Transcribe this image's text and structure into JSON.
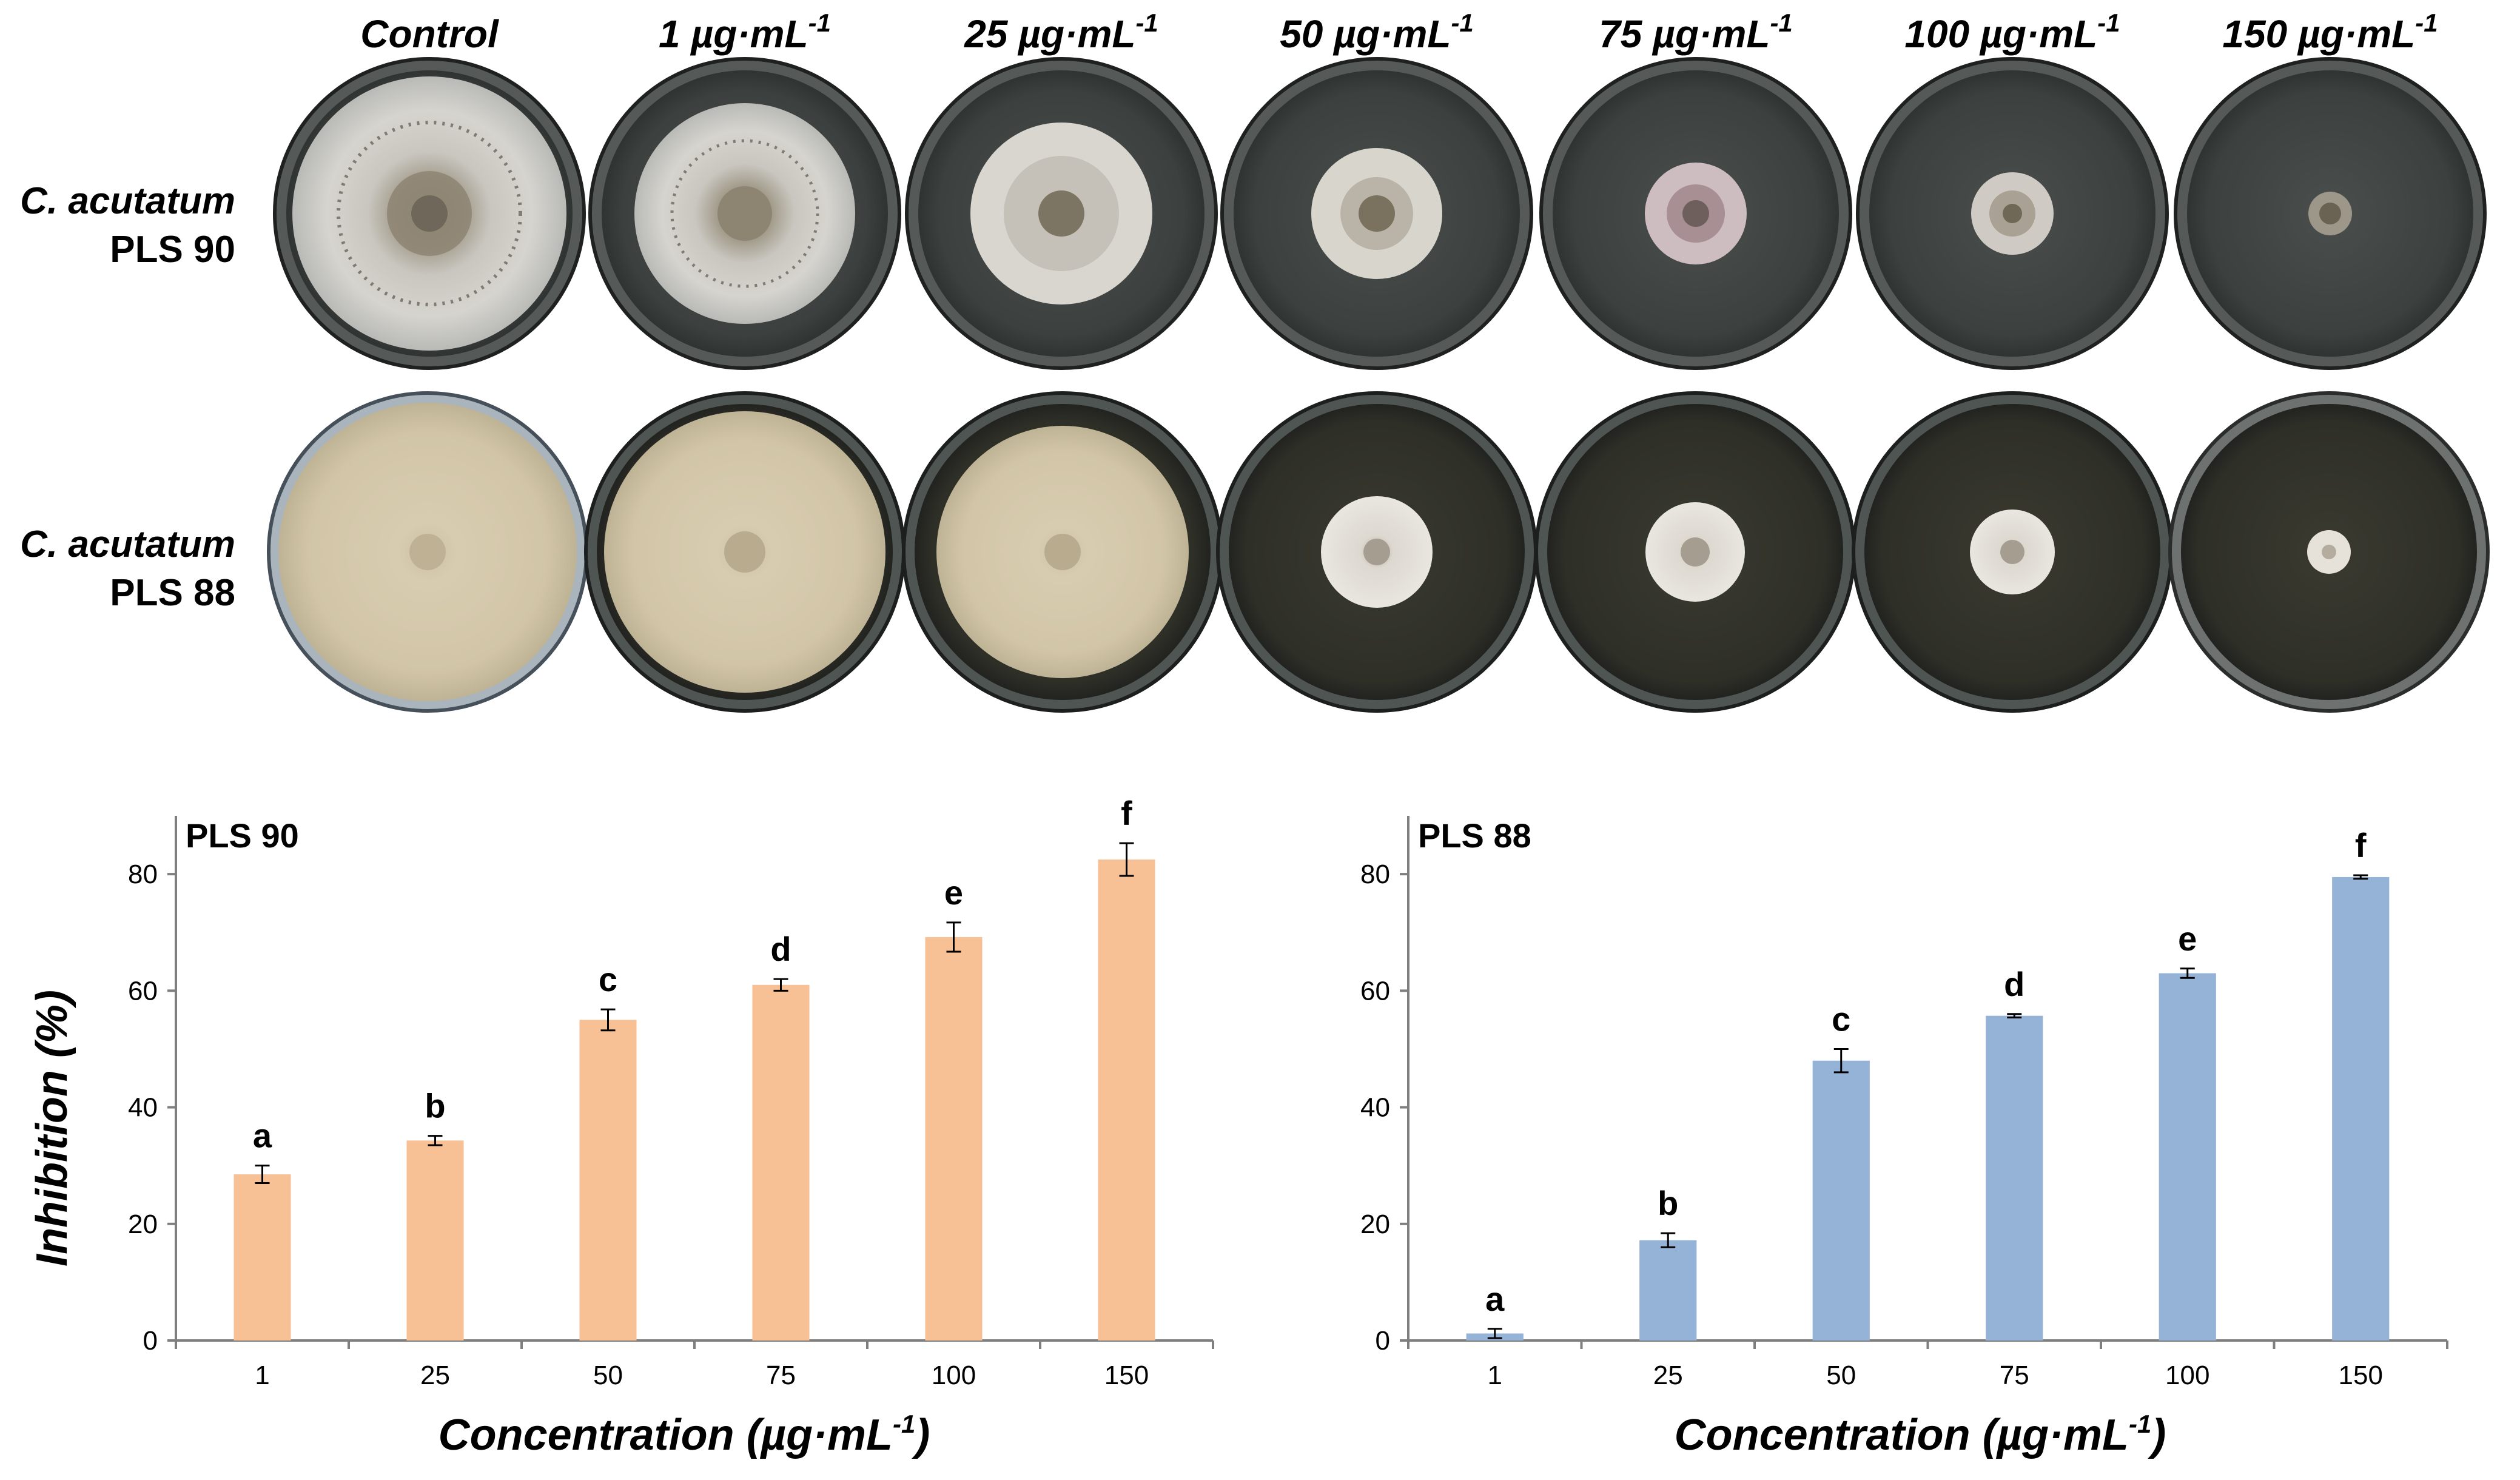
{
  "figure": {
    "column_headers": [
      {
        "main": "Control",
        "sup": ""
      },
      {
        "main": "1 µg·mL",
        "sup": "-1"
      },
      {
        "main": "25 µg·mL",
        "sup": "-1"
      },
      {
        "main": "50 µg·mL",
        "sup": "-1"
      },
      {
        "main": "75 µg·mL",
        "sup": "-1"
      },
      {
        "main": "100 µg·mL",
        "sup": "-1"
      },
      {
        "main": "150 µg·mL",
        "sup": "-1"
      }
    ],
    "rows": [
      {
        "species": "C. acutatum",
        "strain": "PLS 90"
      },
      {
        "species": "C. acutatum",
        "strain": "PLS 88"
      }
    ],
    "y_axis_label": "Inhibition (%)",
    "x_axis_label_main": "Concentration (µg·mL",
    "x_axis_label_sup": "-1",
    "x_axis_label_close": ")"
  },
  "colors": {
    "pls90_bar": "#F8C195",
    "pls88_bar": "#95B3D7",
    "axis": "#7f7f7f"
  },
  "chart_data": [
    {
      "type": "bar",
      "title": "PLS 90",
      "categories": [
        "1",
        "25",
        "50",
        "75",
        "100",
        "150"
      ],
      "values": [
        28.5,
        34.3,
        55.0,
        61.0,
        69.2,
        82.5
      ],
      "errors": [
        1.5,
        0.8,
        1.8,
        1.0,
        2.5,
        2.8
      ],
      "letters": [
        "a",
        "b",
        "c",
        "d",
        "e",
        "f"
      ],
      "yticks": [
        "0",
        "20",
        "40",
        "60",
        "80"
      ],
      "ylim": [
        0,
        90
      ],
      "xlabel": "Concentration (µg·mL-1)",
      "ylabel": "Inhibition (%)"
    },
    {
      "type": "bar",
      "title": "PLS 88",
      "categories": [
        "1",
        "25",
        "50",
        "75",
        "100",
        "150"
      ],
      "values": [
        1.2,
        17.2,
        48.0,
        55.7,
        63.0,
        79.5
      ],
      "errors": [
        0.8,
        1.2,
        2.0,
        0.3,
        0.8,
        0.3
      ],
      "letters": [
        "a",
        "b",
        "c",
        "d",
        "e",
        "f"
      ],
      "yticks": [
        "0",
        "20",
        "40",
        "60",
        "80"
      ],
      "ylim": [
        0,
        90
      ],
      "xlabel": "Concentration (µg·mL-1)",
      "ylabel": ""
    }
  ]
}
